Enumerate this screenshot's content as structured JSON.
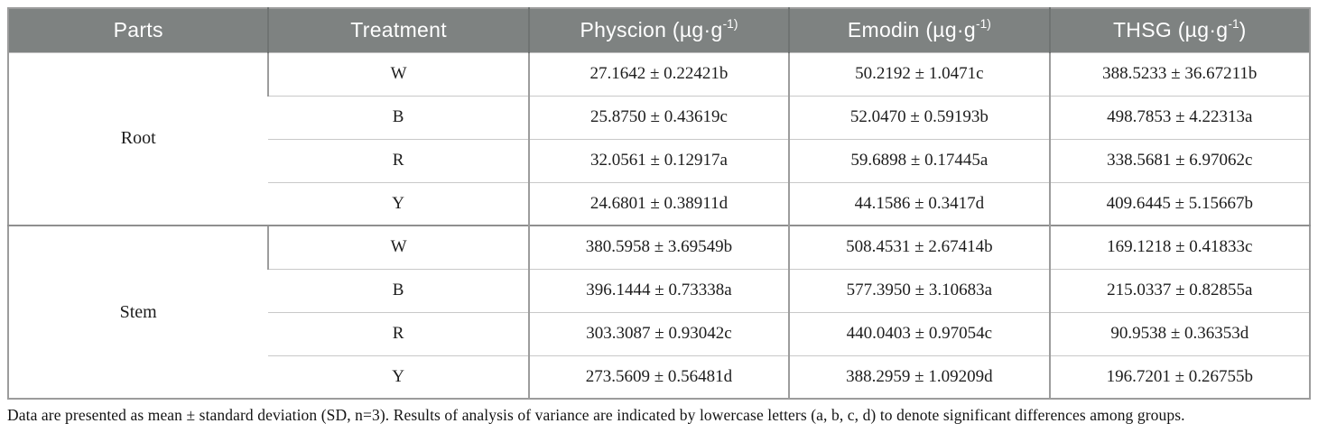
{
  "table": {
    "columns": [
      {
        "label": "Parts"
      },
      {
        "label": "Treatment"
      },
      {
        "label": "Physcion (µg·g",
        "sup": "-1)"
      },
      {
        "label": "Emodin (µg·g",
        "sup": "-1)"
      },
      {
        "label": "THSG (µg·g",
        "sup": "-1",
        "close": ")"
      }
    ],
    "groups": [
      {
        "part": "Root",
        "rows": [
          {
            "treatment": "W",
            "physcion": "27.1642 ± 0.22421b",
            "emodin": "50.2192 ± 1.0471c",
            "thsg": "388.5233 ± 36.67211b"
          },
          {
            "treatment": "B",
            "physcion": "25.8750 ± 0.43619c",
            "emodin": "52.0470 ± 0.59193b",
            "thsg": "498.7853 ± 4.22313a"
          },
          {
            "treatment": "R",
            "physcion": "32.0561 ± 0.12917a",
            "emodin": "59.6898 ± 0.17445a",
            "thsg": "338.5681 ± 6.97062c"
          },
          {
            "treatment": "Y",
            "physcion": "24.6801 ± 0.38911d",
            "emodin": "44.1586 ± 0.3417d",
            "thsg": "409.6445 ± 5.15667b"
          }
        ]
      },
      {
        "part": "Stem",
        "rows": [
          {
            "treatment": "W",
            "physcion": "380.5958 ± 3.69549b",
            "emodin": "508.4531 ± 2.67414b",
            "thsg": "169.1218 ± 0.41833c"
          },
          {
            "treatment": "B",
            "physcion": "396.1444 ± 0.73338a",
            "emodin": "577.3950 ± 3.10683a",
            "thsg": "215.0337 ± 0.82855a"
          },
          {
            "treatment": "R",
            "physcion": "303.3087 ± 0.93042c",
            "emodin": "440.0403 ± 0.97054c",
            "thsg": "90.9538 ± 0.36353d"
          },
          {
            "treatment": "Y",
            "physcion": "273.5609 ± 0.56481d",
            "emodin": "388.2959 ± 1.09209d",
            "thsg": "196.7201 ± 0.26755b"
          }
        ]
      }
    ]
  },
  "footnote": "Data are presented as mean ± standard deviation (SD, n=3). Results of analysis of variance are indicated by lowercase letters (a, b, c, d) to denote significant differences among groups.",
  "colors": {
    "header_bg": "#7e8281",
    "header_text": "#ffffff",
    "grid_vertical": "#9c9c9c",
    "grid_horizontal": "#c9c9c9",
    "group_divider": "#8f8f8f"
  }
}
